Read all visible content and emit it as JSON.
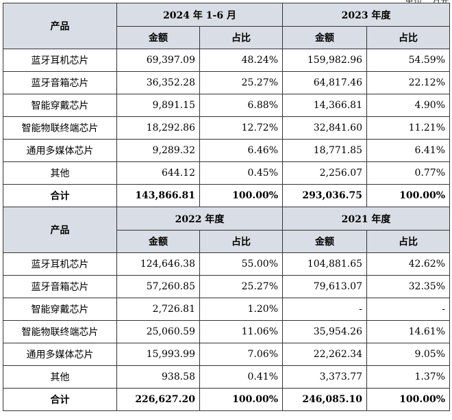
{
  "unit_note": "单位：万元",
  "sections": [
    {
      "product_header": "产品",
      "period_a": "2024 年 1-6 月",
      "period_b": "2023 年度",
      "amount_label": "金额",
      "ratio_label": "占比",
      "rows": [
        {
          "name": "蓝牙耳机芯片",
          "a_amount": "69,397.09",
          "a_ratio": "48.24%",
          "b_amount": "159,982.96",
          "b_ratio": "54.59%"
        },
        {
          "name": "蓝牙音箱芯片",
          "a_amount": "36,352.28",
          "a_ratio": "25.27%",
          "b_amount": "64,817.46",
          "b_ratio": "22.12%"
        },
        {
          "name": "智能穿戴芯片",
          "a_amount": "9,891.15",
          "a_ratio": "6.88%",
          "b_amount": "14,366.81",
          "b_ratio": "4.90%"
        },
        {
          "name": "智能物联终端芯片",
          "a_amount": "18,292.86",
          "a_ratio": "12.72%",
          "b_amount": "32,841.60",
          "b_ratio": "11.21%"
        },
        {
          "name": "通用多媒体芯片",
          "a_amount": "9,289.32",
          "a_ratio": "6.46%",
          "b_amount": "18,771.85",
          "b_ratio": "6.41%"
        },
        {
          "name": "其他",
          "a_amount": "644.12",
          "a_ratio": "0.45%",
          "b_amount": "2,256.07",
          "b_ratio": "0.77%"
        }
      ],
      "total": {
        "name": "合计",
        "a_amount": "143,866.81",
        "a_ratio": "100.00%",
        "b_amount": "293,036.75",
        "b_ratio": "100.00%"
      }
    },
    {
      "product_header": "产品",
      "period_a": "2022 年度",
      "period_b": "2021 年度",
      "amount_label": "金额",
      "ratio_label": "占比",
      "rows": [
        {
          "name": "蓝牙耳机芯片",
          "a_amount": "124,646.38",
          "a_ratio": "55.00%",
          "b_amount": "104,881.65",
          "b_ratio": "42.62%"
        },
        {
          "name": "蓝牙音箱芯片",
          "a_amount": "57,260.85",
          "a_ratio": "25.27%",
          "b_amount": "79,613.07",
          "b_ratio": "32.35%"
        },
        {
          "name": "智能穿戴芯片",
          "a_amount": "2,726.81",
          "a_ratio": "1.20%",
          "b_amount": "-",
          "b_ratio": "-"
        },
        {
          "name": "智能物联终端芯片",
          "a_amount": "25,060.59",
          "a_ratio": "11.06%",
          "b_amount": "35,954.26",
          "b_ratio": "14.61%"
        },
        {
          "name": "通用多媒体芯片",
          "a_amount": "15,993.99",
          "a_ratio": "7.06%",
          "b_amount": "22,262.34",
          "b_ratio": "9.05%"
        },
        {
          "name": "其他",
          "a_amount": "938.58",
          "a_ratio": "0.41%",
          "b_amount": "3,373.77",
          "b_ratio": "1.37%"
        }
      ],
      "total": {
        "name": "合计",
        "a_amount": "226,627.20",
        "a_ratio": "100.00%",
        "b_amount": "246,085.10",
        "b_ratio": "100.00%"
      }
    }
  ]
}
